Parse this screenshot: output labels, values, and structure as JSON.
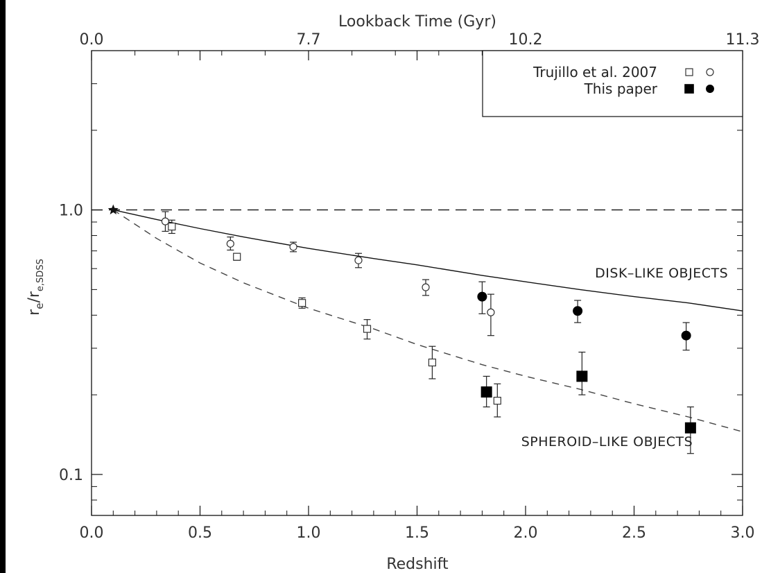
{
  "chart_data": {
    "type": "scatter",
    "xlabel": "Redshift",
    "top_xlabel": "Lookback Time (Gyr)",
    "ylabel_main": "r",
    "ylabel_sub1": "e",
    "ylabel_mid": "/r",
    "ylabel_sub2": "e,SDSS",
    "xlim": [
      0.0,
      3.0
    ],
    "ylim": [
      0.07,
      4.0
    ],
    "y_scale": "log",
    "x_ticks": [
      "0.0",
      "0.5",
      "1.0",
      "1.5",
      "2.0",
      "2.5",
      "3.0"
    ],
    "top_x_ticks": [
      {
        "label": "0.0",
        "z": 0.0
      },
      {
        "label": "7.7",
        "z": 1.0
      },
      {
        "label": "10.2",
        "z": 2.0
      },
      {
        "label": "11.3",
        "z": 3.0
      }
    ],
    "y_ticks": [
      {
        "label": "1.0",
        "value": 1.0
      },
      {
        "label": "0.1",
        "value": 0.1
      }
    ],
    "reference_line": {
      "y": 1.0,
      "style": "dashed"
    },
    "reference_star": {
      "x": 0.1,
      "y": 1.0
    },
    "fits": [
      {
        "name": "disk",
        "style": "solid",
        "z0": 0.1,
        "z1": 3.0,
        "points": [
          [
            0.1,
            1.0
          ],
          [
            0.3,
            0.92
          ],
          [
            0.5,
            0.85
          ],
          [
            0.7,
            0.79
          ],
          [
            1.0,
            0.715
          ],
          [
            1.3,
            0.655
          ],
          [
            1.5,
            0.62
          ],
          [
            1.8,
            0.565
          ],
          [
            2.0,
            0.535
          ],
          [
            2.25,
            0.5
          ],
          [
            2.5,
            0.47
          ],
          [
            2.75,
            0.445
          ],
          [
            3.0,
            0.415
          ]
        ]
      },
      {
        "name": "spheroid",
        "style": "dashed",
        "z0": 0.1,
        "z1": 3.0,
        "points": [
          [
            0.1,
            1.0
          ],
          [
            0.3,
            0.78
          ],
          [
            0.5,
            0.63
          ],
          [
            0.7,
            0.53
          ],
          [
            1.0,
            0.425
          ],
          [
            1.3,
            0.355
          ],
          [
            1.5,
            0.31
          ],
          [
            1.8,
            0.26
          ],
          [
            2.0,
            0.235
          ],
          [
            2.25,
            0.21
          ],
          [
            2.5,
            0.185
          ],
          [
            2.75,
            0.165
          ],
          [
            3.0,
            0.145
          ]
        ]
      }
    ],
    "series": [
      {
        "name": "Trujillo et al. 2007",
        "group": "disk",
        "marker": "open-circle",
        "points": [
          {
            "x": 0.34,
            "y": 0.905,
            "lo": 0.83,
            "hi": 0.985
          },
          {
            "x": 0.64,
            "y": 0.745,
            "lo": 0.705,
            "hi": 0.79
          },
          {
            "x": 0.93,
            "y": 0.725,
            "lo": 0.695,
            "hi": 0.755
          },
          {
            "x": 1.23,
            "y": 0.645,
            "lo": 0.605,
            "hi": 0.685
          },
          {
            "x": 1.54,
            "y": 0.51,
            "lo": 0.475,
            "hi": 0.545
          },
          {
            "x": 1.84,
            "y": 0.41,
            "lo": 0.335,
            "hi": 0.48
          }
        ]
      },
      {
        "name": "Trujillo et al. 2007",
        "group": "spheroid",
        "marker": "open-square",
        "points": [
          {
            "x": 0.37,
            "y": 0.865,
            "lo": 0.815,
            "hi": 0.915
          },
          {
            "x": 0.67,
            "y": 0.665,
            "lo": 0.645,
            "hi": 0.685
          },
          {
            "x": 0.97,
            "y": 0.445,
            "lo": 0.425,
            "hi": 0.465
          },
          {
            "x": 1.27,
            "y": 0.355,
            "lo": 0.325,
            "hi": 0.385
          },
          {
            "x": 1.57,
            "y": 0.265,
            "lo": 0.23,
            "hi": 0.305
          },
          {
            "x": 1.87,
            "y": 0.19,
            "lo": 0.165,
            "hi": 0.22
          }
        ]
      },
      {
        "name": "This paper",
        "group": "disk",
        "marker": "filled-circle",
        "points": [
          {
            "x": 1.8,
            "y": 0.47,
            "lo": 0.405,
            "hi": 0.535
          },
          {
            "x": 2.24,
            "y": 0.415,
            "lo": 0.375,
            "hi": 0.455
          },
          {
            "x": 2.74,
            "y": 0.335,
            "lo": 0.295,
            "hi": 0.375
          }
        ]
      },
      {
        "name": "This paper",
        "group": "spheroid",
        "marker": "filled-square",
        "points": [
          {
            "x": 1.82,
            "y": 0.205,
            "lo": 0.18,
            "hi": 0.235
          },
          {
            "x": 2.26,
            "y": 0.235,
            "lo": 0.2,
            "hi": 0.29
          },
          {
            "x": 2.76,
            "y": 0.15,
            "lo": 0.12,
            "hi": 0.18
          }
        ]
      }
    ],
    "annotations": [
      {
        "text": "DISK–LIKE OBJECTS",
        "x": 2.32,
        "y": 0.555
      },
      {
        "text": "SPHEROID–LIKE OBJECTS",
        "x": 1.98,
        "y": 0.128
      }
    ],
    "legend": {
      "position": "top-right",
      "entries": [
        {
          "label": "Trujillo et al. 2007",
          "markers": [
            "open-square",
            "open-circle"
          ]
        },
        {
          "label": "This paper",
          "markers": [
            "filled-square",
            "filled-circle"
          ]
        }
      ]
    },
    "colors": {
      "background": "#000000",
      "plot_background": "#ffffff",
      "ink": "#111111"
    }
  }
}
